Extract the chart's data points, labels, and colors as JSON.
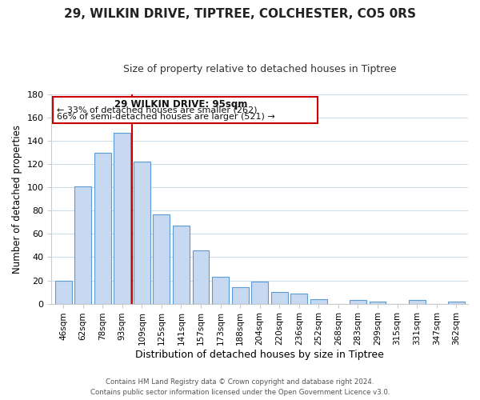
{
  "title": "29, WILKIN DRIVE, TIPTREE, COLCHESTER, CO5 0RS",
  "subtitle": "Size of property relative to detached houses in Tiptree",
  "xlabel": "Distribution of detached houses by size in Tiptree",
  "ylabel": "Number of detached properties",
  "bar_labels": [
    "46sqm",
    "62sqm",
    "78sqm",
    "93sqm",
    "109sqm",
    "125sqm",
    "141sqm",
    "157sqm",
    "173sqm",
    "188sqm",
    "204sqm",
    "220sqm",
    "236sqm",
    "252sqm",
    "268sqm",
    "283sqm",
    "299sqm",
    "315sqm",
    "331sqm",
    "347sqm",
    "362sqm"
  ],
  "bar_values": [
    20,
    101,
    130,
    147,
    122,
    77,
    67,
    46,
    23,
    14,
    19,
    10,
    9,
    4,
    0,
    3,
    2,
    0,
    3,
    0,
    2
  ],
  "bar_color": "#c6d9f0",
  "bar_edge_color": "#5b9bd5",
  "red_line_x": 3.5,
  "ylim": [
    0,
    180
  ],
  "yticks": [
    0,
    20,
    40,
    60,
    80,
    100,
    120,
    140,
    160,
    180
  ],
  "annotation_title": "29 WILKIN DRIVE: 95sqm",
  "annotation_line1": "← 33% of detached houses are smaller (262)",
  "annotation_line2": "66% of semi-detached houses are larger (521) →",
  "footer_line1": "Contains HM Land Registry data © Crown copyright and database right 2024.",
  "footer_line2": "Contains public sector information licensed under the Open Government Licence v3.0.",
  "background_color": "#ffffff",
  "grid_color": "#d0dce8"
}
